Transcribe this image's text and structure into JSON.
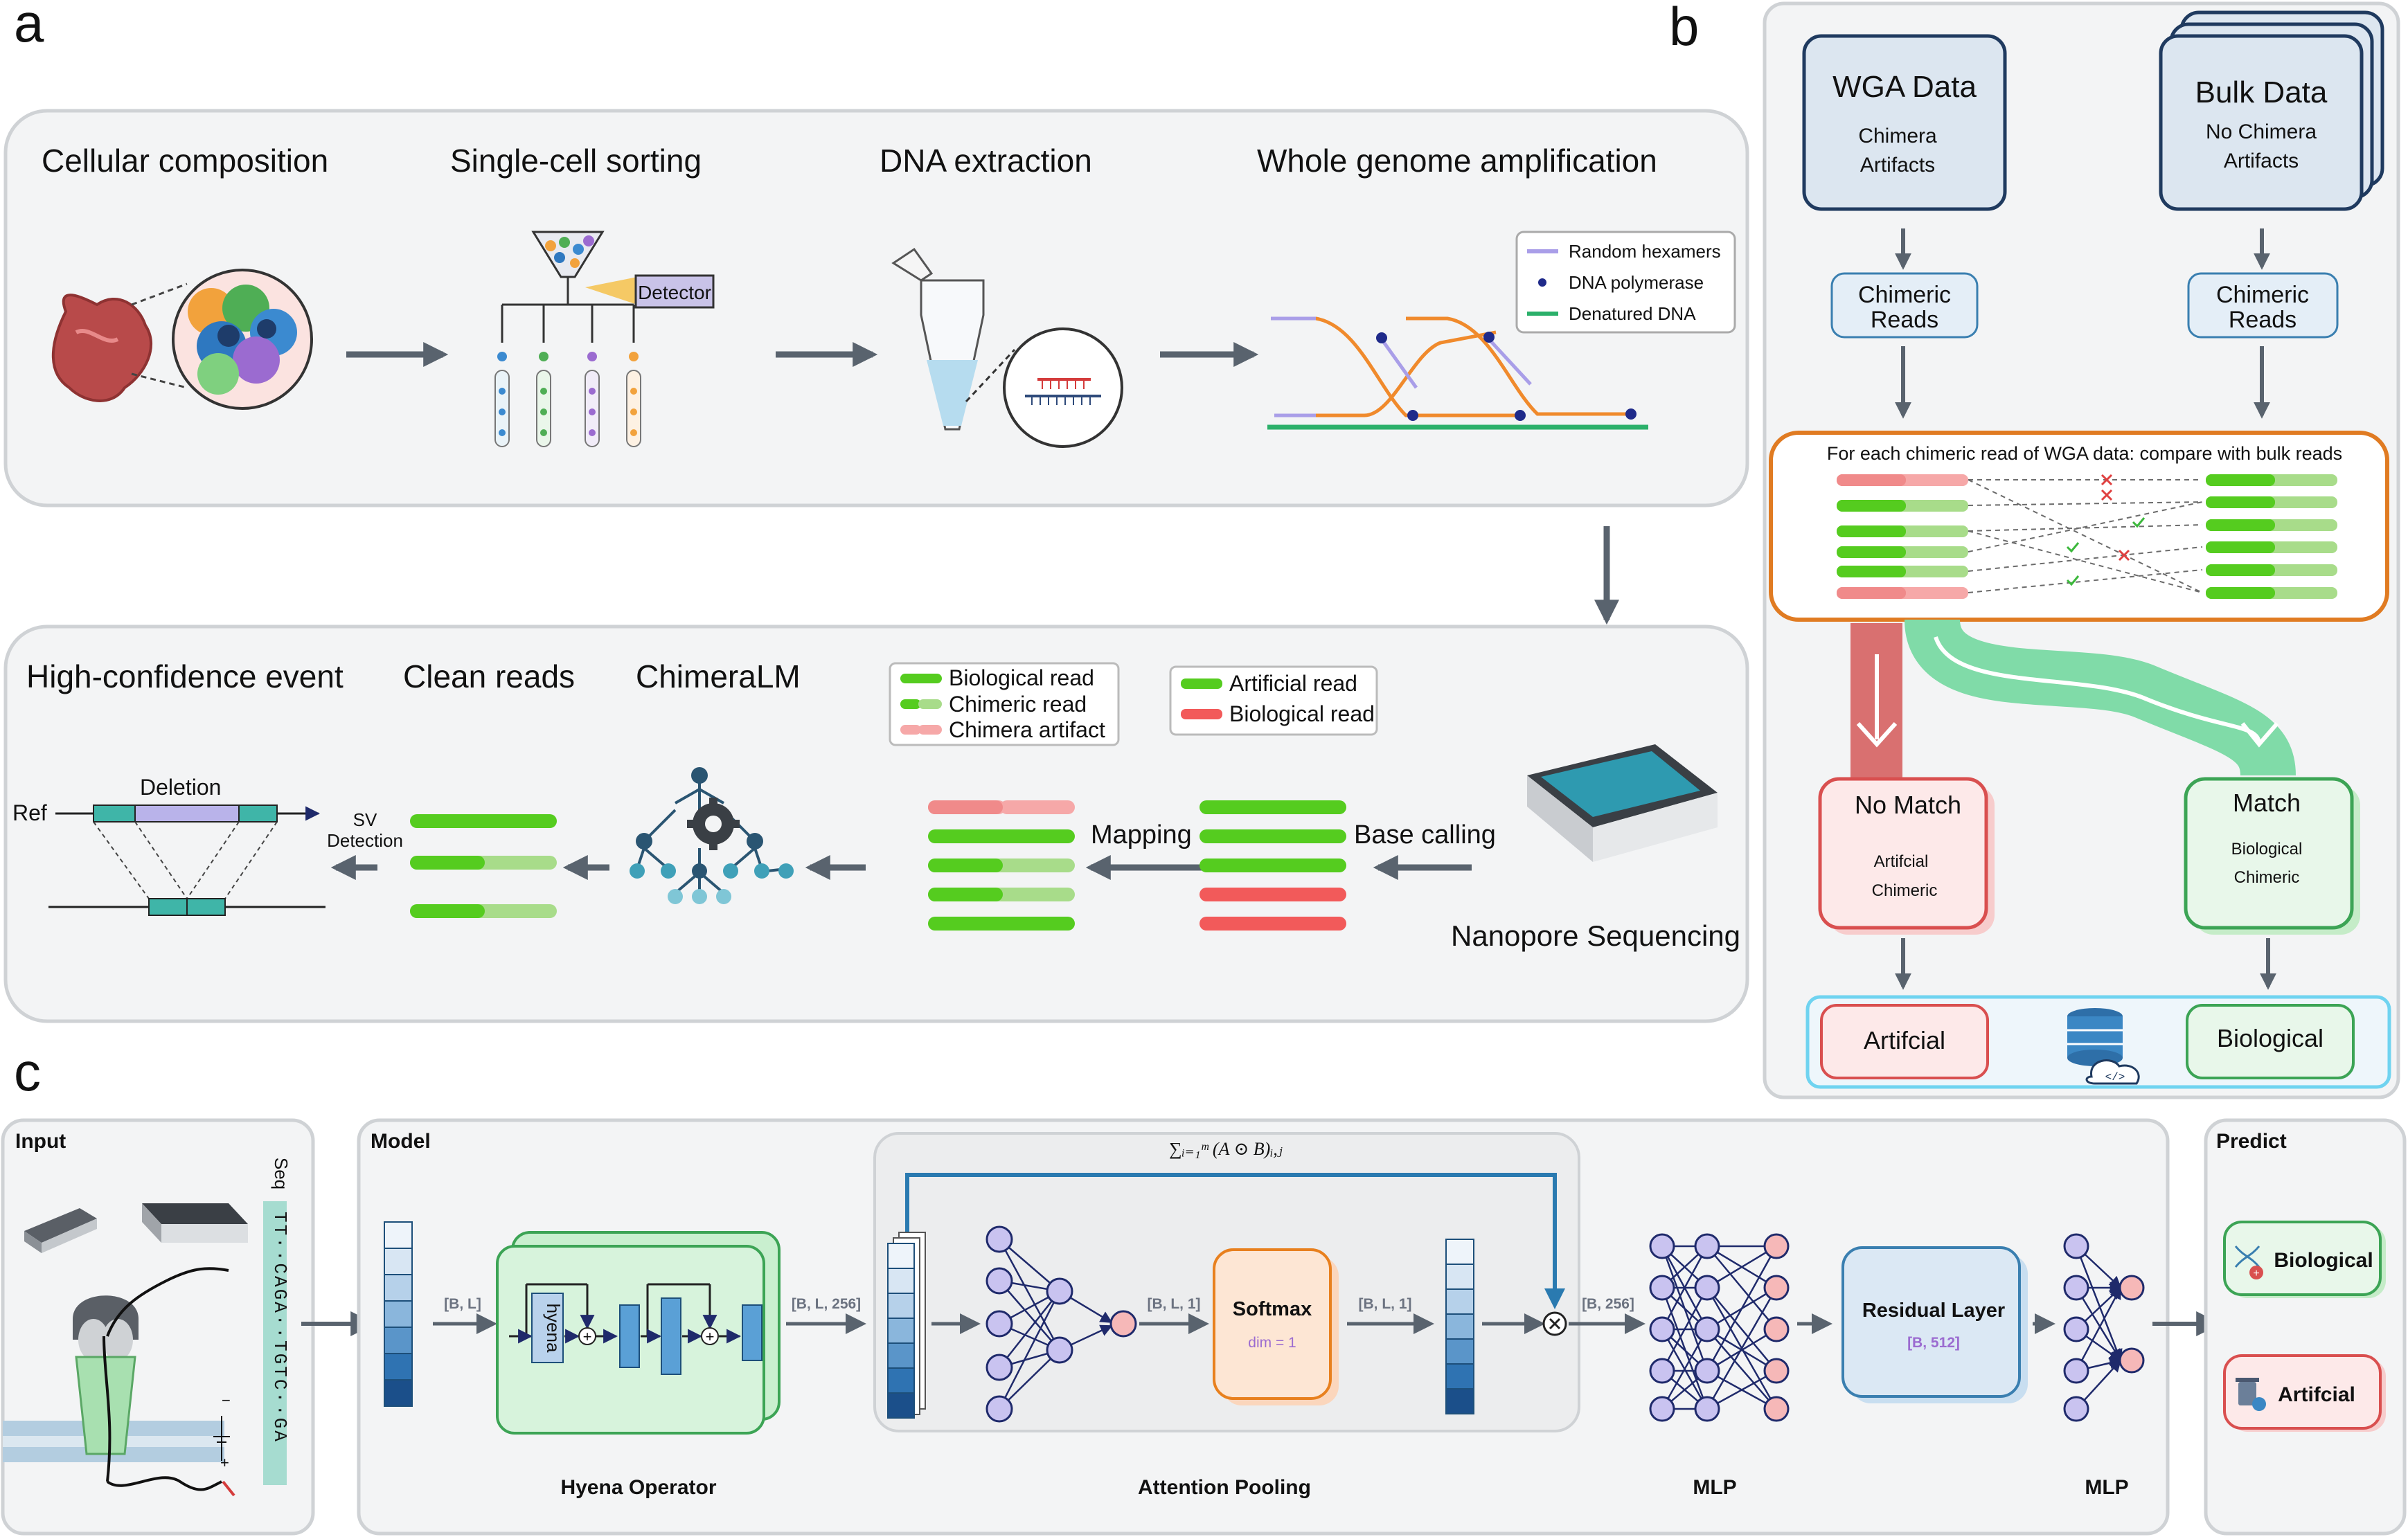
{
  "panels": {
    "a": "a",
    "b": "b",
    "c": "c"
  },
  "panel_a": {
    "steps": [
      "Cellular composition",
      "Single-cell sorting",
      "DNA extraction",
      "Whole genome amplification"
    ],
    "detector": "Detector",
    "wga_legend": [
      "Random hexamers",
      "DNA polymerase",
      "Denatured DNA"
    ],
    "lower_steps": [
      "High-confidence event",
      "Clean reads",
      "ChimeraLM"
    ],
    "read_legend_1": [
      "Biological read",
      "Chimeric read",
      "Chimera artifact"
    ],
    "read_legend_2": [
      "Artificial read",
      "Biological read"
    ],
    "mapping": "Mapping",
    "base_calling": "Base calling",
    "nanopore": "Nanopore Sequencing",
    "sv_detection": [
      "SV",
      "Detection"
    ],
    "deletion": "Deletion",
    "ref": "Ref"
  },
  "panel_b": {
    "wga_title": "WGA Data",
    "wga_sub": [
      "Chimera",
      "Artifacts"
    ],
    "bulk_title": "Bulk Data",
    "bulk_sub": [
      "No Chimera",
      "Artifacts"
    ],
    "chimeric_reads": [
      "Chimeric",
      "Reads"
    ],
    "compare": "For each chimeric read of WGA data: compare with bulk reads",
    "no_match": "No Match",
    "no_match_sub": [
      "Artifcial",
      "Chimeric"
    ],
    "match": "Match",
    "match_sub": [
      "Biological",
      "Chimeric"
    ],
    "out_artificial": "Artifcial",
    "out_biological": "Biological"
  },
  "panel_c": {
    "input": "Input",
    "model": "Model",
    "predict": "Predict",
    "seq_label": "Seq",
    "seq": "TT··CAGA··TGTC··GA",
    "hyena": "hyena",
    "shape_bl": "[B, L]",
    "shape_bl256": "[B, L, 256]",
    "shape_bl1a": "[B, L, 1]",
    "shape_bl1b": "[B, L, 1]",
    "shape_b256": "[B, 256]",
    "shape_b512": "[B, 512]",
    "softmax": "Softmax",
    "dim": "dim = 1",
    "residual": "Residual Layer",
    "hyena_operator": "Hyena Operator",
    "attention_pooling": "Attention Pooling",
    "mlp1": "MLP",
    "mlp2": "MLP",
    "pred_bio": "Biological",
    "pred_art": "Artifcial",
    "formula": "∑ᵢ₌₁ᵐ (A ⊙ B)ᵢ,ⱼ"
  },
  "colors": {
    "bright_green": "#55cc1f",
    "light_green": "#a8dc8a",
    "red": "#f25a5a",
    "light_red": "#f6a8a8",
    "teal": "#3fb5a8",
    "orange": "#e8801e",
    "arrow": "#59636e"
  }
}
